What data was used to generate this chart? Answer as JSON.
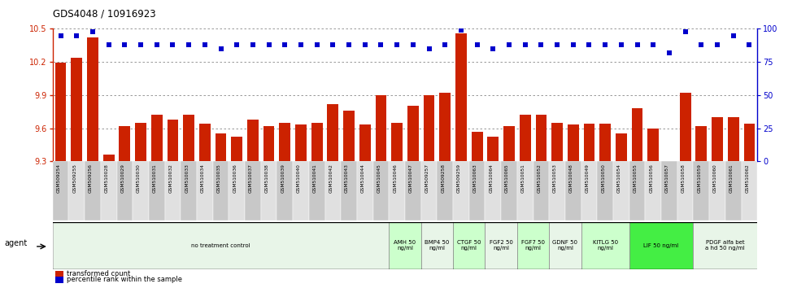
{
  "title": "GDS4048 / 10916923",
  "categories": [
    "GSM509254",
    "GSM509255",
    "GSM509256",
    "GSM510028",
    "GSM510029",
    "GSM510030",
    "GSM510031",
    "GSM510032",
    "GSM510033",
    "GSM510034",
    "GSM510035",
    "GSM510036",
    "GSM510037",
    "GSM510038",
    "GSM510039",
    "GSM510040",
    "GSM510041",
    "GSM510042",
    "GSM510043",
    "GSM510044",
    "GSM510045",
    "GSM510046",
    "GSM510047",
    "GSM509257",
    "GSM509258",
    "GSM509259",
    "GSM510063",
    "GSM510064",
    "GSM510065",
    "GSM510051",
    "GSM510052",
    "GSM510053",
    "GSM510048",
    "GSM510049",
    "GSM510050",
    "GSM510054",
    "GSM510055",
    "GSM510056",
    "GSM510057",
    "GSM510058",
    "GSM510059",
    "GSM510060",
    "GSM510061",
    "GSM510062"
  ],
  "bar_values": [
    10.19,
    10.24,
    10.42,
    9.36,
    9.62,
    9.65,
    9.72,
    9.68,
    9.72,
    9.64,
    9.55,
    9.52,
    9.68,
    9.62,
    9.65,
    9.63,
    9.65,
    9.82,
    9.76,
    9.63,
    9.9,
    9.65,
    9.8,
    9.9,
    9.92,
    10.46,
    9.57,
    9.52,
    9.62,
    9.72,
    9.72,
    9.65,
    9.63,
    9.64,
    9.64,
    9.55,
    9.78,
    9.6,
    9.22,
    9.92,
    9.62,
    9.7,
    9.7,
    9.64
  ],
  "percentile_values": [
    95,
    95,
    98,
    88,
    88,
    88,
    88,
    88,
    88,
    88,
    85,
    88,
    88,
    88,
    88,
    88,
    88,
    88,
    88,
    88,
    88,
    88,
    88,
    85,
    88,
    99,
    88,
    85,
    88,
    88,
    88,
    88,
    88,
    88,
    88,
    88,
    88,
    88,
    82,
    98,
    88,
    88,
    95,
    88
  ],
  "ylim_left": [
    9.3,
    10.5
  ],
  "ylim_right": [
    0,
    100
  ],
  "yticks_left": [
    9.3,
    9.6,
    9.9,
    10.2,
    10.5
  ],
  "yticks_right": [
    0,
    25,
    50,
    75,
    100
  ],
  "bar_color": "#cc2200",
  "dot_color": "#0000cc",
  "gridline_color": "#888888",
  "agent_groups": [
    {
      "label": "no treatment control",
      "start": 0,
      "end": 21,
      "bg": "#e8f5e8",
      "border": "#aaaaaa"
    },
    {
      "label": "AMH 50\nng/ml",
      "start": 21,
      "end": 23,
      "bg": "#ccffcc",
      "border": "#888888"
    },
    {
      "label": "BMP4 50\nng/ml",
      "start": 23,
      "end": 25,
      "bg": "#e8f5e8",
      "border": "#888888"
    },
    {
      "label": "CTGF 50\nng/ml",
      "start": 25,
      "end": 27,
      "bg": "#ccffcc",
      "border": "#888888"
    },
    {
      "label": "FGF2 50\nng/ml",
      "start": 27,
      "end": 29,
      "bg": "#e8f5e8",
      "border": "#888888"
    },
    {
      "label": "FGF7 50\nng/ml",
      "start": 29,
      "end": 31,
      "bg": "#ccffcc",
      "border": "#888888"
    },
    {
      "label": "GDNF 50\nng/ml",
      "start": 31,
      "end": 33,
      "bg": "#e8f5e8",
      "border": "#888888"
    },
    {
      "label": "KITLG 50\nng/ml",
      "start": 33,
      "end": 36,
      "bg": "#ccffcc",
      "border": "#888888"
    },
    {
      "label": "LIF 50 ng/ml",
      "start": 36,
      "end": 40,
      "bg": "#44ee44",
      "border": "#888888"
    },
    {
      "label": "PDGF alfa bet\na hd 50 ng/ml",
      "start": 40,
      "end": 44,
      "bg": "#e8f5e8",
      "border": "#888888"
    }
  ]
}
